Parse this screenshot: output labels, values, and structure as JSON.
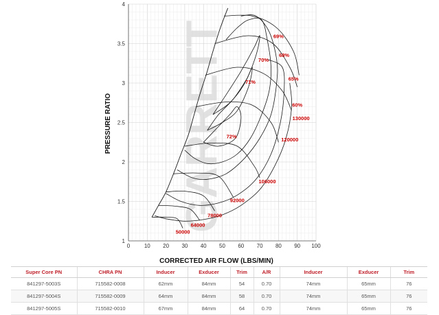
{
  "chart_data": {
    "type": "compressor-map",
    "xlabel": "CORRECTED AIR FLOW (LBS/MIN)",
    "ylabel": "PRESSURE RATIO",
    "xlim": [
      0,
      100
    ],
    "ylim": [
      1,
      4
    ],
    "x_ticks": [
      0,
      10,
      20,
      30,
      40,
      50,
      60,
      70,
      80,
      90,
      100
    ],
    "y_ticks": [
      1,
      1.5,
      2,
      2.5,
      3,
      3.5,
      4
    ],
    "y_tick_labels": [
      "1",
      "1.5",
      "2",
      "2.5",
      "3",
      "3.5",
      "4"
    ],
    "grid": true,
    "surge_line": [
      [
        12.5,
        1.3
      ],
      [
        16,
        1.45
      ],
      [
        20,
        1.62
      ],
      [
        24,
        1.85
      ],
      [
        28,
        2.1
      ],
      [
        32,
        2.35
      ],
      [
        35,
        2.6
      ],
      [
        38,
        2.85
      ],
      [
        42,
        3.15
      ],
      [
        45,
        3.4
      ],
      [
        49,
        3.7
      ],
      [
        53,
        3.95
      ]
    ],
    "speed_lines": [
      {
        "label": "50000",
        "points": [
          [
            12.5,
            1.3
          ],
          [
            20,
            1.3
          ],
          [
            26,
            1.28
          ],
          [
            29,
            1.16
          ]
        ]
      },
      {
        "label": "64000",
        "points": [
          [
            16,
            1.45
          ],
          [
            25,
            1.44
          ],
          [
            33,
            1.4
          ],
          [
            38,
            1.26
          ]
        ]
      },
      {
        "label": "78000",
        "points": [
          [
            20,
            1.62
          ],
          [
            30,
            1.63
          ],
          [
            40,
            1.57
          ],
          [
            46,
            1.38
          ]
        ]
      },
      {
        "label": "92000",
        "points": [
          [
            24,
            1.85
          ],
          [
            36,
            1.86
          ],
          [
            48,
            1.82
          ],
          [
            56,
            1.55
          ]
        ]
      },
      {
        "label": "106000",
        "points": [
          [
            30,
            2.2
          ],
          [
            44,
            2.24
          ],
          [
            58,
            2.2
          ],
          [
            67,
            1.95
          ],
          [
            70,
            1.8
          ]
        ]
      },
      {
        "label": "120000",
        "points": [
          [
            36,
            2.7
          ],
          [
            52,
            2.76
          ],
          [
            66,
            2.72
          ],
          [
            76,
            2.5
          ],
          [
            80,
            2.25
          ]
        ]
      },
      {
        "label": "130000",
        "points": [
          [
            41,
            3.1
          ],
          [
            58,
            3.2
          ],
          [
            72,
            3.12
          ],
          [
            82,
            2.9
          ],
          [
            87,
            2.65
          ]
        ]
      },
      {
        "points": [
          [
            46,
            3.5
          ],
          [
            64,
            3.6
          ],
          [
            77,
            3.5
          ],
          [
            86,
            3.2
          ],
          [
            90,
            2.95
          ]
        ]
      },
      {
        "points": [
          [
            51,
            3.85
          ],
          [
            66,
            3.85
          ],
          [
            79,
            3.7
          ],
          [
            88,
            3.4
          ],
          [
            91,
            3.1
          ]
        ]
      }
    ],
    "efficiency_islands": [
      {
        "label": "72%",
        "points": [
          [
            40,
            2.25
          ],
          [
            48,
            2.2
          ],
          [
            57,
            2.3
          ],
          [
            60,
            2.55
          ],
          [
            58,
            2.7
          ],
          [
            54,
            2.6
          ],
          [
            46,
            2.4
          ],
          [
            40,
            2.25
          ]
        ]
      },
      {
        "label": "71%",
        "points": [
          [
            42,
            2.4
          ],
          [
            50,
            2.5
          ],
          [
            58,
            2.65
          ],
          [
            64,
            2.95
          ],
          [
            66,
            3.2
          ],
          [
            63,
            3.05
          ],
          [
            56,
            2.8
          ],
          [
            48,
            2.6
          ],
          [
            42,
            2.4
          ]
        ]
      },
      {
        "label": "70%",
        "points": [
          [
            45,
            2.6
          ],
          [
            54,
            2.75
          ],
          [
            62,
            3.0
          ],
          [
            68,
            3.35
          ],
          [
            70,
            3.6
          ],
          [
            67,
            3.45
          ],
          [
            60,
            3.15
          ],
          [
            52,
            2.85
          ],
          [
            45,
            2.6
          ]
        ]
      },
      {
        "label": "69%",
        "points": [
          [
            52,
            3.55
          ],
          [
            58,
            3.7
          ],
          [
            64,
            3.8
          ],
          [
            71,
            3.8
          ],
          [
            74,
            3.55
          ],
          [
            76,
            3.2
          ],
          [
            75,
            2.9
          ],
          [
            71,
            2.6
          ],
          [
            65,
            2.3
          ],
          [
            58,
            2.1
          ],
          [
            50,
            2.0
          ],
          [
            42,
            1.98
          ],
          [
            35,
            2.05
          ],
          [
            30,
            2.15
          ]
        ]
      },
      {
        "label": "68%",
        "points": [
          [
            60,
            3.85
          ],
          [
            68,
            3.85
          ],
          [
            75,
            3.65
          ],
          [
            79,
            3.3
          ],
          [
            79,
            3.0
          ],
          [
            76,
            2.6
          ],
          [
            70,
            2.3
          ],
          [
            62,
            2.05
          ],
          [
            52,
            1.85
          ],
          [
            42,
            1.78
          ],
          [
            34,
            1.8
          ],
          [
            26,
            1.9
          ]
        ]
      },
      {
        "label": "65%",
        "points": [
          [
            74,
            3.3
          ],
          [
            82,
            3.2
          ],
          [
            83,
            2.9
          ],
          [
            81,
            2.5
          ],
          [
            76,
            2.1
          ],
          [
            68,
            1.78
          ],
          [
            58,
            1.58
          ],
          [
            48,
            1.48
          ],
          [
            38,
            1.45
          ],
          [
            28,
            1.5
          ],
          [
            20,
            1.6
          ]
        ]
      },
      {
        "label": "60%",
        "points": [
          [
            86,
            3.0
          ],
          [
            87,
            2.7
          ],
          [
            84,
            2.3
          ],
          [
            78,
            1.95
          ],
          [
            70,
            1.65
          ],
          [
            60,
            1.45
          ],
          [
            50,
            1.33
          ],
          [
            40,
            1.27
          ],
          [
            30,
            1.25
          ],
          [
            20,
            1.28
          ],
          [
            14,
            1.32
          ]
        ]
      }
    ],
    "speed_label_positions": [
      {
        "text": "50000",
        "x": 29,
        "y": 1.09
      },
      {
        "text": "64000",
        "x": 37,
        "y": 1.18
      },
      {
        "text": "78000",
        "x": 46,
        "y": 1.3
      },
      {
        "text": "92000",
        "x": 58,
        "y": 1.49
      },
      {
        "text": "106000",
        "x": 74,
        "y": 1.73
      },
      {
        "text": "120000",
        "x": 86,
        "y": 2.26
      },
      {
        "text": "130000",
        "x": 92,
        "y": 2.53
      }
    ],
    "efficiency_label_positions": [
      {
        "text": "72%",
        "x": 55,
        "y": 2.3
      },
      {
        "text": "71%",
        "x": 65,
        "y": 2.99
      },
      {
        "text": "70%",
        "x": 72,
        "y": 3.27
      },
      {
        "text": "69%",
        "x": 80,
        "y": 3.57
      },
      {
        "text": "68%",
        "x": 83,
        "y": 3.33
      },
      {
        "text": "65%",
        "x": 88,
        "y": 3.03
      },
      {
        "text": "60%",
        "x": 90,
        "y": 2.7
      }
    ],
    "watermark": "GARRETT",
    "colors": {
      "lines": "#1a1a1a",
      "labels": "#cc0000",
      "grid": "#dddddd",
      "watermark": "#d9d9d9"
    }
  },
  "table": {
    "headers": [
      "Super Core PN",
      "CHRA PN",
      "Inducer",
      "Exducer",
      "Trim",
      "A/R",
      "Inducer",
      "Exducer",
      "Trim"
    ],
    "rows": [
      [
        "841297-5003S",
        "715582-0008",
        "62mm",
        "84mm",
        "54",
        "0.70",
        "74mm",
        "65mm",
        "76"
      ],
      [
        "841297-5004S",
        "715582-0009",
        "64mm",
        "84mm",
        "58",
        "0.70",
        "74mm",
        "65mm",
        "76"
      ],
      [
        "841297-5005S",
        "715582-0010",
        "67mm",
        "84mm",
        "64",
        "0.70",
        "74mm",
        "65mm",
        "76"
      ]
    ]
  }
}
